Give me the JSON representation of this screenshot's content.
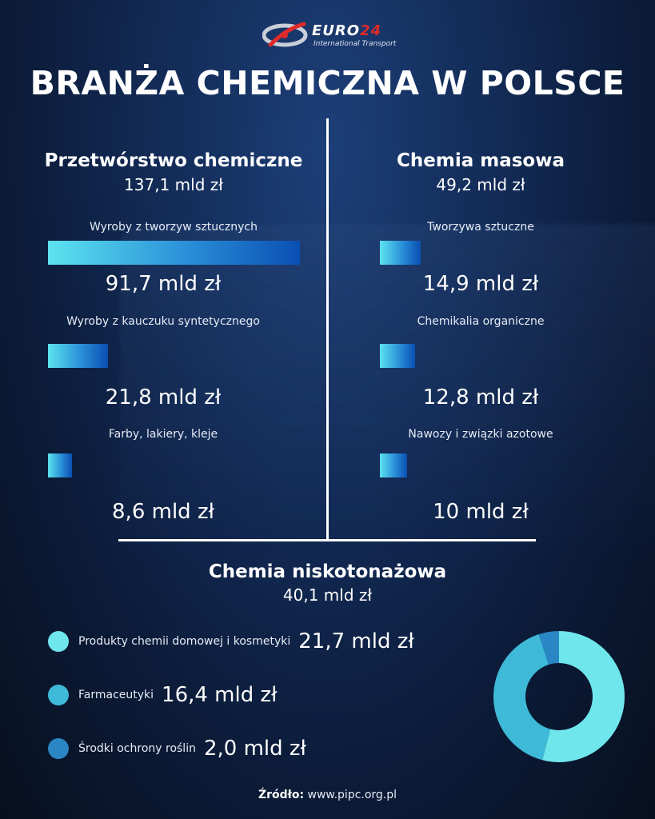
{
  "logo": {
    "brand_text": "EURO",
    "brand_number": "24",
    "tagline": "International Transport"
  },
  "title": "BRANŻA CHEMICZNA W POLSCE",
  "chart_data": [
    {
      "type": "bar",
      "title": "Przetwórstwo chemiczne",
      "subtitle": "137,1 mld zł",
      "categories": [
        "Wyroby z tworzyw sztucznych",
        "Wyroby z kauczuku syntetycznego",
        "Farby, lakiery, kleje"
      ],
      "values": [
        91.7,
        21.8,
        8.6
      ],
      "value_labels": [
        "91,7 mld zł",
        "21,8 mld zł",
        "8,6 mld zł"
      ],
      "xlim": [
        0,
        91.7
      ]
    },
    {
      "type": "bar",
      "title": "Chemia masowa",
      "subtitle": "49,2 mld zł",
      "categories": [
        "Tworzywa sztuczne",
        "Chemikalia organiczne",
        "Nawozy i związki azotowe"
      ],
      "values": [
        14.9,
        12.8,
        10
      ],
      "value_labels": [
        "14,9 mld zł",
        "12,8 mld zł",
        "10 mld zł"
      ],
      "xlim": [
        0,
        91.7
      ]
    },
    {
      "type": "pie",
      "title": "Chemia niskotonażowa",
      "subtitle": "40,1 mld zł",
      "categories": [
        "Produkty chemii domowej i kosmetyki",
        "Farmaceutyki",
        "Środki ochrony roślin"
      ],
      "values": [
        21.7,
        16.4,
        2.0
      ],
      "value_labels": [
        "21,7 mld zł",
        "16,4 mld zł",
        "2,0 mld zł"
      ],
      "colors": [
        "#6fe6ec",
        "#3fb9d8",
        "#2a86c4"
      ]
    }
  ],
  "source": {
    "label": "Źródło:",
    "text": "www.pipc.org.pl"
  }
}
